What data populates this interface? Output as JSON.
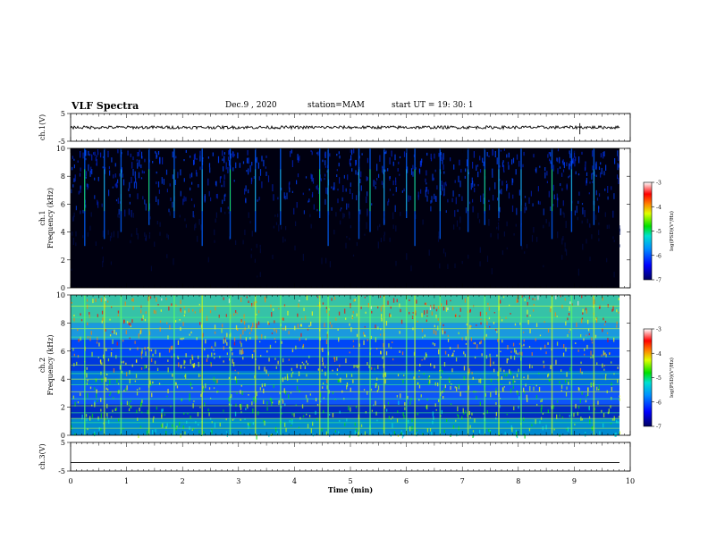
{
  "header": {
    "title": "VLF Spectra",
    "date": "Dec.9 , 2020",
    "station": "station=MAM",
    "start_ut": "start UT =   19: 30: 1"
  },
  "chart_data": [
    {
      "type": "line",
      "panel": "ch1-waveform",
      "ylabel": "ch.1(V)",
      "ylim": [
        -5,
        5
      ],
      "yticks": [
        "5",
        "-5"
      ],
      "xlim": [
        0,
        10
      ],
      "description_values": {
        "mean_level": 0,
        "visible_spike_at_min": 9.1
      }
    },
    {
      "type": "heatmap",
      "panel": "ch1-spectrogram",
      "ylabel": "ch.1\nFrequency (kHz)",
      "ylabel_lines": [
        "ch.1",
        "Frequency (kHz)"
      ],
      "ylim": [
        0,
        10
      ],
      "yticks": [
        "0",
        "2",
        "4",
        "6",
        "8",
        "10"
      ],
      "xlim": [
        0,
        9.85
      ],
      "colorbar": {
        "label": "log(PSD)(V²/Hz)",
        "range": [
          -7,
          -3
        ],
        "ticks": [
          "-3",
          "-4",
          "-5",
          "-6",
          "-7"
        ]
      },
      "background_level": -7,
      "impulses_min": [
        0.25,
        0.6,
        0.9,
        1.4,
        1.85,
        2.35,
        2.85,
        3.3,
        3.75,
        4.45,
        4.6,
        5.15,
        5.35,
        5.6,
        6.0,
        6.15,
        6.6,
        7.1,
        7.4,
        7.65,
        8.05,
        8.6,
        8.95,
        9.35
      ]
    },
    {
      "type": "heatmap",
      "panel": "ch2-spectrogram",
      "ylabel_lines": [
        "ch.2",
        "Frequency (kHz)"
      ],
      "ylim": [
        0,
        10
      ],
      "yticks": [
        "0",
        "2",
        "4",
        "6",
        "8",
        "10"
      ],
      "xlim": [
        0,
        9.85
      ],
      "colorbar": {
        "label": "log(PSD)(V²/Hz)",
        "range": [
          -7,
          -3
        ],
        "ticks": [
          "-3",
          "-4",
          "-5",
          "-6",
          "-7"
        ]
      },
      "horizontal_lines_khz": [
        0.5,
        0.9,
        1.2,
        1.6,
        2.1,
        2.6,
        3.1,
        3.6,
        4.0,
        4.4,
        5.0,
        5.6,
        6.2,
        7.0,
        7.6,
        8.4,
        9.2
      ],
      "impulses_min": [
        0.25,
        0.6,
        0.9,
        1.4,
        1.85,
        2.35,
        2.85,
        3.3,
        3.75,
        4.45,
        4.6,
        5.15,
        5.35,
        5.6,
        6.0,
        6.15,
        6.6,
        7.1,
        7.4,
        7.65,
        8.05,
        8.6,
        8.95,
        9.35
      ]
    },
    {
      "type": "line",
      "panel": "ch3-waveform",
      "ylabel": "ch.3(V)",
      "ylim": [
        -5,
        5
      ],
      "yticks": [
        "5",
        "-5"
      ],
      "xlim": [
        0,
        10
      ],
      "description_values": {
        "mean_level": -2
      }
    }
  ],
  "xaxis": {
    "label": "Time (min)",
    "ticks": [
      "0",
      "1",
      "2",
      "3",
      "4",
      "5",
      "6",
      "7",
      "8",
      "9",
      "10"
    ],
    "range": [
      0,
      10
    ]
  },
  "colors": {
    "cmap": [
      "#00008c",
      "#0000ff",
      "#0080ff",
      "#00e0e0",
      "#00e000",
      "#c0ff00",
      "#ffff00",
      "#ff8000",
      "#ff0000",
      "#ffe0e0"
    ]
  }
}
